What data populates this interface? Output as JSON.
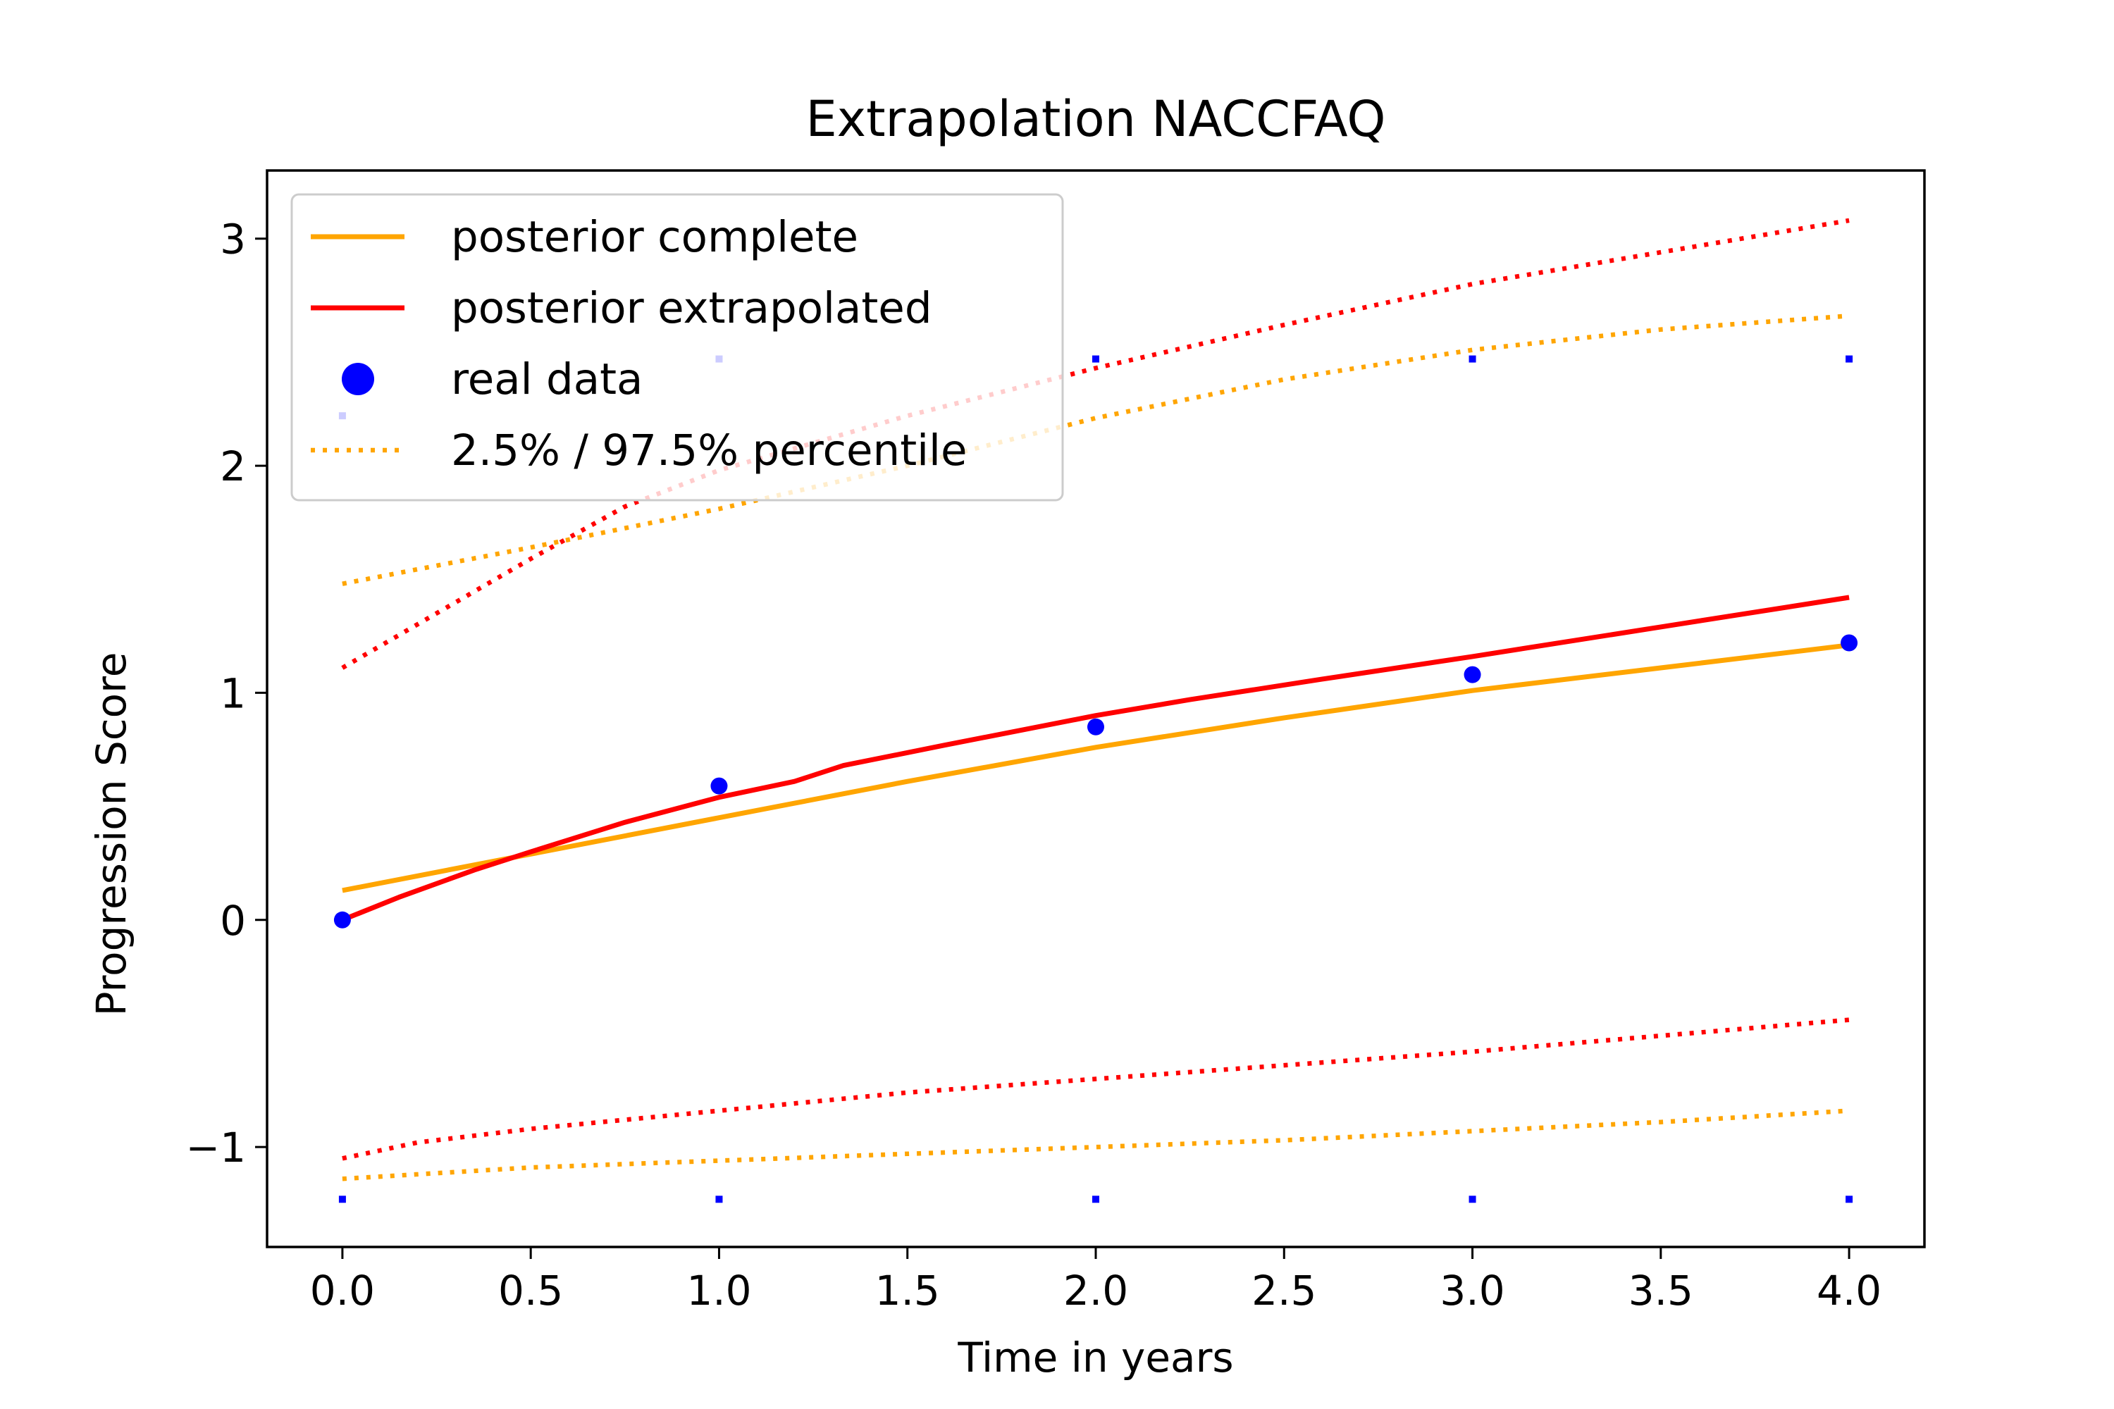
{
  "chart_data": {
    "type": "line",
    "title": "Extrapolation NACCFAQ",
    "xlabel": "Time in years",
    "ylabel": "Progression Score",
    "xlim": [
      -0.2,
      4.2
    ],
    "ylim": [
      -1.44,
      3.3
    ],
    "xticks": [
      0.0,
      0.5,
      1.0,
      1.5,
      2.0,
      2.5,
      3.0,
      3.5,
      4.0
    ],
    "xtick_labels": [
      "0.0",
      "0.5",
      "1.0",
      "1.5",
      "2.0",
      "2.5",
      "3.0",
      "3.5",
      "4.0"
    ],
    "yticks": [
      -1,
      0,
      1,
      2,
      3
    ],
    "ytick_labels": [
      "−1",
      "0",
      "1",
      "2",
      "3"
    ],
    "grid": false,
    "legend_position": "top-left",
    "colors": {
      "complete": "#ffa500",
      "extrapolated": "#ff0000",
      "real": "#0000ff"
    },
    "series": [
      {
        "name": "posterior complete",
        "style": "solid",
        "color": "#ffa500",
        "x": [
          0.0,
          0.5,
          1.0,
          1.5,
          2.0,
          2.5,
          3.0,
          3.5,
          4.0
        ],
        "y": [
          0.13,
          0.29,
          0.45,
          0.61,
          0.76,
          0.89,
          1.01,
          1.11,
          1.21
        ]
      },
      {
        "name": "posterior extrapolated",
        "style": "solid",
        "color": "#ff0000",
        "x": [
          0.0,
          0.15,
          0.35,
          0.5,
          0.75,
          1.0,
          1.2,
          1.33,
          1.6,
          2.0,
          2.25,
          2.6,
          3.0,
          3.5,
          4.0
        ],
        "y": [
          0.0,
          0.1,
          0.22,
          0.3,
          0.43,
          0.54,
          0.61,
          0.68,
          0.77,
          0.9,
          0.97,
          1.06,
          1.16,
          1.29,
          1.42
        ]
      },
      {
        "name": "real data",
        "style": "marker",
        "color": "#0000ff",
        "x": [
          0.0,
          1.0,
          2.0,
          3.0,
          4.0
        ],
        "y": [
          0.0,
          0.59,
          0.85,
          1.08,
          1.22
        ]
      },
      {
        "name": "2.5% / 97.5% percentile",
        "style": "dotted",
        "color": "#ffa500",
        "x": [
          0.0,
          0.5,
          1.0,
          1.5,
          2.0,
          2.5,
          3.0,
          3.5,
          4.0
        ],
        "y": [
          1.48,
          1.64,
          1.81,
          2.0,
          2.21,
          2.38,
          2.51,
          2.6,
          2.66
        ]
      },
      {
        "style": "dotted",
        "color": "#ffa500",
        "x": [
          0.0,
          0.5,
          1.0,
          1.5,
          2.0,
          2.5,
          3.0,
          3.5,
          4.0
        ],
        "y": [
          -1.14,
          -1.09,
          -1.06,
          -1.03,
          -1.0,
          -0.97,
          -0.93,
          -0.89,
          -0.84
        ]
      },
      {
        "style": "dotted",
        "color": "#ff0000",
        "x": [
          0.0,
          0.25,
          0.5,
          0.75,
          1.0,
          1.5,
          2.0,
          2.5,
          3.0,
          3.5,
          4.0
        ],
        "y": [
          1.11,
          1.35,
          1.59,
          1.82,
          1.98,
          2.22,
          2.43,
          2.62,
          2.8,
          2.94,
          3.08
        ]
      },
      {
        "style": "dotted",
        "color": "#ff0000",
        "x": [
          0.0,
          0.2,
          0.5,
          1.0,
          1.5,
          2.0,
          2.5,
          3.0,
          3.5,
          4.0
        ],
        "y": [
          -1.05,
          -0.98,
          -0.92,
          -0.84,
          -0.76,
          -0.7,
          -0.64,
          -0.58,
          -0.51,
          -0.44
        ]
      },
      {
        "style": "small-marker",
        "color": "#0000ff",
        "x": [
          0.0,
          1.0,
          2.0,
          3.0,
          4.0
        ],
        "y": [
          2.22,
          2.47,
          2.47,
          2.47,
          2.47
        ]
      },
      {
        "style": "small-marker",
        "color": "#0000ff",
        "x": [
          0.0,
          1.0,
          2.0,
          3.0,
          4.0
        ],
        "y": [
          -1.23,
          -1.23,
          -1.23,
          -1.23,
          -1.23
        ]
      }
    ]
  }
}
